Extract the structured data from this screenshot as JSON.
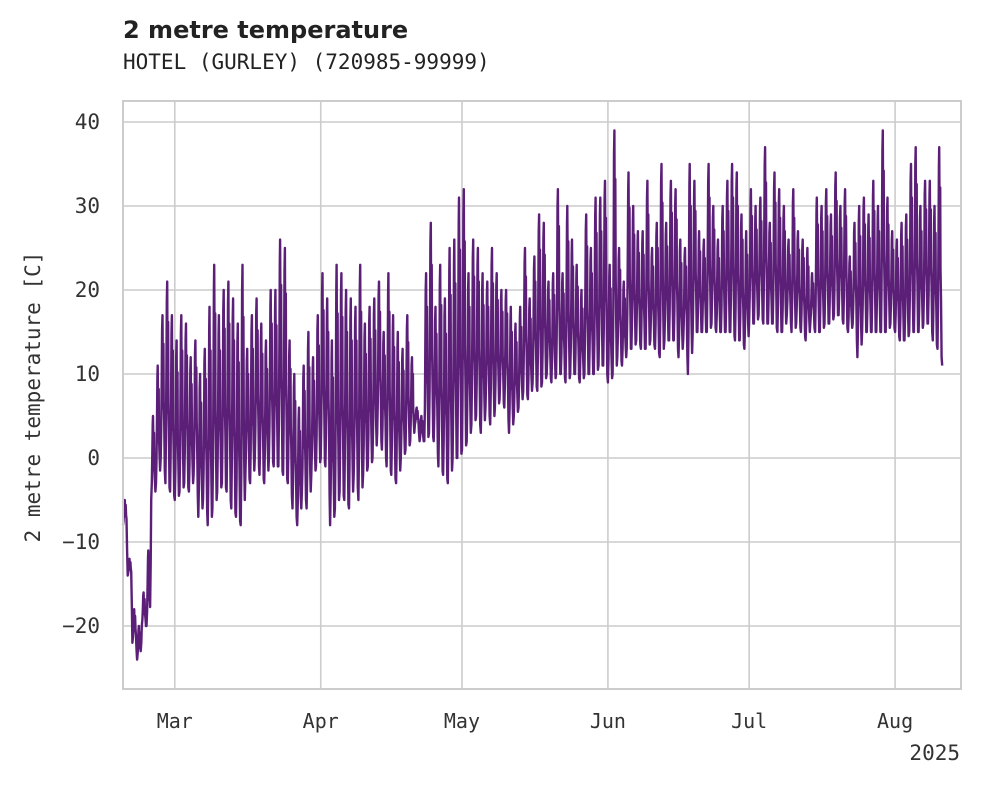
{
  "chart_data": {
    "type": "line",
    "title": "2 metre temperature",
    "subtitle": "HOTEL (GURLEY) (720985-99999)",
    "xlabel": "",
    "ylabel": "2 metre temperature [C]",
    "xlim": [
      "2025-02-18",
      "2025-08-15"
    ],
    "ylim": [
      -27.5,
      42.5
    ],
    "yticks": [
      40,
      30,
      20,
      10,
      0,
      -10,
      -20
    ],
    "ytick_labels": [
      "40",
      "30",
      "20",
      "10",
      "0",
      "−10",
      "−20"
    ],
    "xticks": [
      "2025-03-01",
      "2025-04-01",
      "2025-05-01",
      "2025-06-01",
      "2025-07-01",
      "2025-08-01"
    ],
    "xtick_labels": [
      "Mar",
      "Apr",
      "May",
      "Jun",
      "Jul",
      "Aug"
    ],
    "x_offset_label": "2025",
    "grid": true,
    "series": [
      {
        "color": "#5b1f78",
        "x": [
          "2025-02-18",
          "2025-02-19",
          "2025-02-20",
          "2025-02-21",
          "2025-02-22",
          "2025-02-23",
          "2025-02-24",
          "2025-02-25",
          "2025-02-26",
          "2025-02-27",
          "2025-02-28",
          "2025-03-01",
          "2025-03-02",
          "2025-03-03",
          "2025-03-04",
          "2025-03-05",
          "2025-03-06",
          "2025-03-07",
          "2025-03-08",
          "2025-03-09",
          "2025-03-10",
          "2025-03-11",
          "2025-03-12",
          "2025-03-13",
          "2025-03-14",
          "2025-03-15",
          "2025-03-16",
          "2025-03-17",
          "2025-03-18",
          "2025-03-19",
          "2025-03-20",
          "2025-03-21",
          "2025-03-22",
          "2025-03-23",
          "2025-03-24",
          "2025-03-25",
          "2025-03-26",
          "2025-03-27",
          "2025-03-28",
          "2025-03-29",
          "2025-03-30",
          "2025-03-31",
          "2025-04-01",
          "2025-04-02",
          "2025-04-03",
          "2025-04-04",
          "2025-04-05",
          "2025-04-06",
          "2025-04-07",
          "2025-04-08",
          "2025-04-09",
          "2025-04-10",
          "2025-04-11",
          "2025-04-12",
          "2025-04-13",
          "2025-04-14",
          "2025-04-15",
          "2025-04-16",
          "2025-04-17",
          "2025-04-18",
          "2025-04-19",
          "2025-04-20",
          "2025-04-21",
          "2025-04-22",
          "2025-04-23",
          "2025-04-24",
          "2025-04-25",
          "2025-04-26",
          "2025-04-27",
          "2025-04-28",
          "2025-04-29",
          "2025-04-30",
          "2025-05-01",
          "2025-05-02",
          "2025-05-03",
          "2025-05-04",
          "2025-05-05",
          "2025-05-06",
          "2025-05-07",
          "2025-05-08",
          "2025-05-09",
          "2025-05-10",
          "2025-05-11",
          "2025-05-12",
          "2025-05-13",
          "2025-05-14",
          "2025-05-15",
          "2025-05-16",
          "2025-05-17",
          "2025-05-18",
          "2025-05-19",
          "2025-05-20",
          "2025-05-21",
          "2025-05-22",
          "2025-05-23",
          "2025-05-24",
          "2025-05-25",
          "2025-05-26",
          "2025-05-27",
          "2025-05-28",
          "2025-05-29",
          "2025-05-30",
          "2025-05-31",
          "2025-06-01",
          "2025-06-02",
          "2025-06-03",
          "2025-06-04",
          "2025-06-05",
          "2025-06-06",
          "2025-06-07",
          "2025-06-08",
          "2025-06-09",
          "2025-06-10",
          "2025-06-11",
          "2025-06-12",
          "2025-06-13",
          "2025-06-14",
          "2025-06-15",
          "2025-06-16",
          "2025-06-17",
          "2025-06-18",
          "2025-06-19",
          "2025-06-20",
          "2025-06-21",
          "2025-06-22",
          "2025-06-23",
          "2025-06-24",
          "2025-06-25",
          "2025-06-26",
          "2025-06-27",
          "2025-06-28",
          "2025-06-29",
          "2025-06-30",
          "2025-07-01",
          "2025-07-02",
          "2025-07-03",
          "2025-07-04",
          "2025-07-05",
          "2025-07-06",
          "2025-07-07",
          "2025-07-08",
          "2025-07-09",
          "2025-07-10",
          "2025-07-11",
          "2025-07-12",
          "2025-07-13",
          "2025-07-14",
          "2025-07-15",
          "2025-07-16",
          "2025-07-17",
          "2025-07-18",
          "2025-07-19",
          "2025-07-20",
          "2025-07-21",
          "2025-07-22",
          "2025-07-23",
          "2025-07-24",
          "2025-07-25",
          "2025-07-26",
          "2025-07-27",
          "2025-07-28",
          "2025-07-29",
          "2025-07-30",
          "2025-07-31",
          "2025-08-01",
          "2025-08-02",
          "2025-08-03",
          "2025-08-04",
          "2025-08-05",
          "2025-08-06",
          "2025-08-07",
          "2025-08-08",
          "2025-08-09",
          "2025-08-10",
          "2025-08-11",
          "2025-08-12",
          "2025-08-13",
          "2025-08-14",
          "2025-08-15"
        ],
        "min": [
          -8,
          -14,
          -22,
          -24,
          -20,
          -20,
          -5,
          -3,
          0,
          -3,
          -4,
          -5,
          -4,
          -3,
          -4,
          -2,
          -7,
          -5,
          -8,
          -6,
          -4,
          -3,
          -4,
          -6,
          -7,
          -8,
          -2,
          -3,
          0,
          -2,
          -3,
          0,
          -1,
          -1,
          -2,
          -3,
          -6,
          -8,
          -4,
          -6,
          -2,
          -1,
          0,
          -1,
          -8,
          -6,
          -4,
          -5,
          -6,
          -2,
          -5,
          -2,
          -1,
          0,
          3,
          1,
          -1,
          -2,
          -3,
          0,
          1,
          2,
          4,
          2,
          2,
          3,
          2,
          -1,
          -2,
          -3,
          0,
          0,
          1,
          2,
          4,
          5,
          3,
          6,
          4,
          6,
          7,
          6,
          3,
          5,
          6,
          8,
          7,
          9,
          8,
          9,
          10,
          9,
          10,
          10,
          9,
          10,
          10,
          9,
          10,
          10,
          10,
          11,
          11,
          9,
          10,
          12,
          11,
          13,
          13,
          14,
          13,
          13,
          14,
          13,
          12,
          14,
          14,
          14,
          12,
          14,
          10,
          15,
          15,
          15,
          15,
          16,
          15,
          15,
          15,
          15,
          14,
          14,
          13,
          16,
          16,
          17,
          16,
          16,
          16,
          15,
          15,
          17,
          15,
          16,
          15,
          14,
          16,
          15,
          15,
          16,
          16,
          17,
          17,
          16,
          15,
          16,
          12,
          15,
          15,
          15,
          15,
          15,
          15,
          16,
          15,
          14,
          14,
          15,
          15,
          15,
          16,
          16,
          14,
          13,
          11,
          13,
          14,
          14,
          13,
          15
        ],
        "max": [
          -5,
          -12,
          -18,
          -20,
          -16,
          -11,
          5,
          11,
          17,
          21,
          17,
          14,
          17,
          16,
          12,
          14,
          10,
          13,
          18,
          23,
          17,
          20,
          21,
          19,
          16,
          23,
          13,
          17,
          19,
          16,
          14,
          20,
          20,
          26,
          25,
          14,
          10,
          6,
          11,
          15,
          12,
          17,
          22,
          19,
          14,
          23,
          22,
          20,
          19,
          18,
          23,
          16,
          18,
          19,
          21,
          15,
          22,
          17,
          15,
          13,
          17,
          12,
          6,
          5,
          22,
          28,
          18,
          23,
          19,
          25,
          26,
          31,
          32,
          22,
          26,
          25,
          22,
          21,
          25,
          22,
          20,
          20,
          18,
          16,
          18,
          25,
          19,
          24,
          29,
          28,
          21,
          22,
          32,
          22,
          30,
          26,
          23,
          20,
          29,
          25,
          31,
          31,
          33,
          23,
          39,
          25,
          21,
          34,
          30,
          27,
          27,
          33,
          25,
          28,
          35,
          28,
          33,
          32,
          26,
          25,
          35,
          33,
          27,
          26,
          35,
          30,
          26,
          30,
          33,
          35,
          34,
          29,
          27,
          32,
          30,
          31,
          37,
          28,
          34,
          32,
          30,
          26,
          32,
          27,
          26,
          25,
          22,
          31,
          30,
          32,
          29,
          34,
          30,
          32,
          24,
          28,
          30,
          31,
          29,
          33,
          30,
          39,
          31,
          27,
          26,
          28,
          29,
          35,
          37,
          30,
          33,
          33,
          30,
          37
        ]
      }
    ]
  }
}
